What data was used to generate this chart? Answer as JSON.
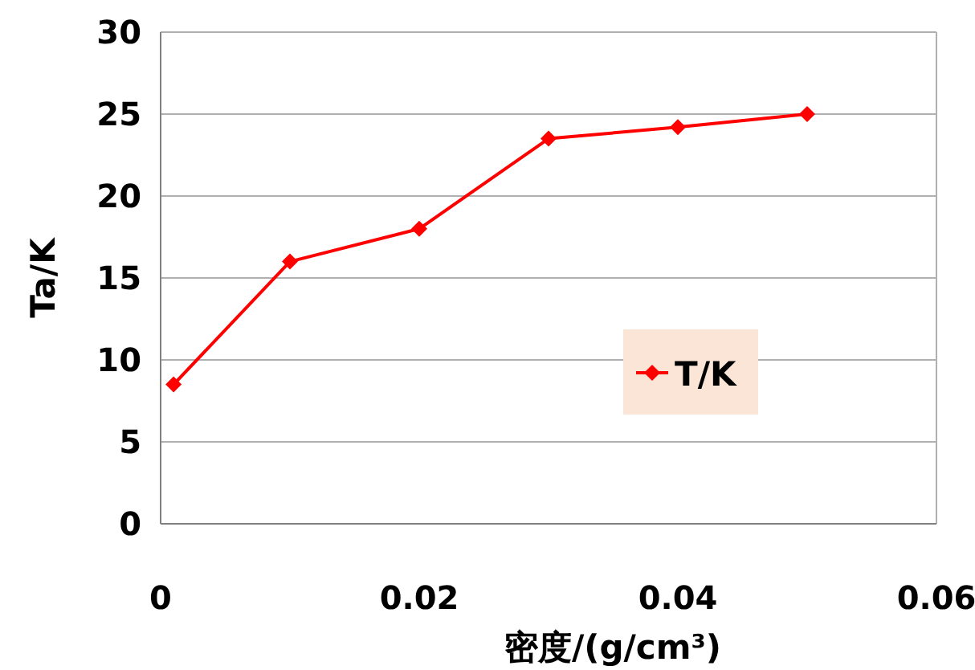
{
  "chart_data": {
    "type": "line",
    "xlabel": "密度/(g/cm³)",
    "ylabel": "Ta/K",
    "x": [
      0.001,
      0.01,
      0.02,
      0.03,
      0.04,
      0.05
    ],
    "series": [
      {
        "name": "T/K",
        "color": "#ff0000",
        "values": [
          8.5,
          16,
          18,
          23.5,
          24.2,
          25
        ]
      }
    ],
    "xlim": [
      0,
      0.06
    ],
    "xticks": [
      0,
      0.02,
      0.04,
      0.06
    ],
    "ylim": [
      0,
      30
    ],
    "yticks": [
      0,
      5,
      10,
      15,
      20,
      25,
      30
    ],
    "grid": "y",
    "legend": "right",
    "marker": "diamond",
    "line_style": "solid"
  }
}
